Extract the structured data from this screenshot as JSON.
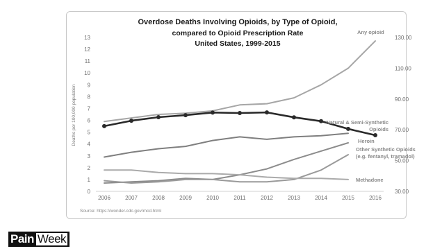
{
  "slide": {
    "logo_part1": "Pain",
    "logo_part2": "Week",
    "logo_brand": "PainWeek"
  },
  "chart_data": {
    "type": "line",
    "title": "Overdose Deaths Involving Opioids, by Type of Opioid,",
    "title_line2": "compared to Opioid Prescription Rate",
    "title_line3": "United States, 1999-2015",
    "ylabel": "Deaths per 100,000 population",
    "source": "Source: https://wonder.cdc.gov/mcd.html",
    "x": [
      "2006",
      "2007",
      "2008",
      "2009",
      "2010",
      "2011",
      "2012",
      "2013",
      "2014",
      "2015",
      "2016"
    ],
    "ylim": [
      0,
      13
    ],
    "y_ticks": [
      "0",
      "1",
      "2",
      "3",
      "4",
      "5",
      "6",
      "7",
      "8",
      "9",
      "10",
      "11",
      "12",
      "13"
    ],
    "y2lim": [
      30,
      130
    ],
    "y2_ticks": [
      "30.00",
      "50.00",
      "70.00",
      "90.00",
      "110.00",
      "130.00"
    ],
    "grid": false,
    "series": [
      {
        "name": "Any opioid",
        "label_lines": [
          "Any opioid"
        ],
        "axis": "left",
        "color": "#a6a6a6",
        "values": [
          5.9,
          6.2,
          6.5,
          6.6,
          6.8,
          7.3,
          7.4,
          7.9,
          9.0,
          10.4,
          12.7
        ]
      },
      {
        "name": "Natural & Semi-Synthetic Opioids",
        "label_lines": [
          "Natural & Semi-Synthetic",
          "Opioids"
        ],
        "axis": "left",
        "color": "#7f7f7f",
        "values": [
          2.9,
          3.3,
          3.6,
          3.8,
          4.3,
          4.6,
          4.4,
          4.6,
          4.7,
          4.9,
          null
        ]
      },
      {
        "name": "Heroin",
        "label_lines": [
          "Heroin"
        ],
        "axis": "left",
        "color": "#8c8c8c",
        "values": [
          0.7,
          0.8,
          0.9,
          1.1,
          1.0,
          1.4,
          1.9,
          2.7,
          3.4,
          4.1,
          null
        ]
      },
      {
        "name": "Other Synthetic Opioids (e.g. fentanyl, tramadol)",
        "label_lines": [
          "Other Synthetic Opioids",
          "(e.g. fentanyl, tramadol)"
        ],
        "axis": "left",
        "color": "#9a9a9a",
        "values": [
          0.9,
          0.7,
          0.8,
          1.0,
          1.0,
          0.8,
          0.8,
          1.0,
          1.8,
          3.1,
          null
        ]
      },
      {
        "name": "Methadone",
        "label_lines": [
          "Methadone"
        ],
        "axis": "left",
        "color": "#aaaaaa",
        "values": [
          1.8,
          1.8,
          1.6,
          1.5,
          1.5,
          1.4,
          1.2,
          1.1,
          1.1,
          1.0,
          null
        ]
      },
      {
        "name": "Opioid Prescription Rate",
        "label_lines": [],
        "axis": "right",
        "color": "#2a2a2a",
        "markers": true,
        "values": [
          72.4,
          75.9,
          78.2,
          79.5,
          81.2,
          80.9,
          81.3,
          78.1,
          75.6,
          70.6,
          66.5
        ]
      }
    ]
  }
}
